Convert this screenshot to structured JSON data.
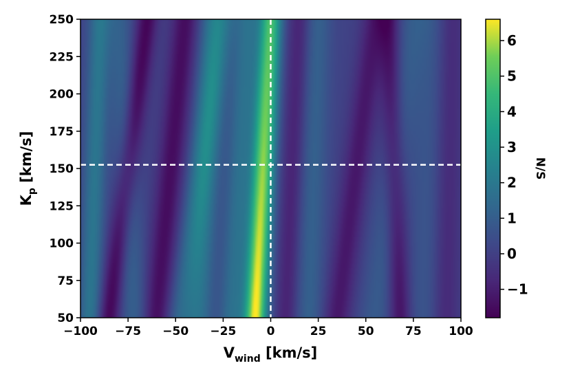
{
  "chart_data": {
    "type": "heatmap",
    "title": "",
    "xlabel": {
      "main": "V",
      "sub": "wind",
      "unit": " [km/s]"
    },
    "ylabel": {
      "main": "K",
      "sub": "p",
      "unit": " [km/s]"
    },
    "xlim": [
      -100,
      100
    ],
    "ylim": [
      50,
      250
    ],
    "x_ticks": [
      -100,
      -75,
      -50,
      -25,
      0,
      25,
      50,
      75,
      100
    ],
    "x_tick_labels": [
      "−100",
      "−75",
      "−50",
      "−25",
      "0",
      "25",
      "50",
      "75",
      "100"
    ],
    "y_ticks": [
      50,
      75,
      100,
      125,
      150,
      175,
      200,
      225,
      250
    ],
    "y_tick_labels": [
      "50",
      "75",
      "100",
      "125",
      "150",
      "175",
      "200",
      "225",
      "250"
    ],
    "colormap": "viridis",
    "colorbar": {
      "label": "N/S",
      "range": [
        -1.8,
        6.6
      ],
      "ticks": [
        -1,
        0,
        1,
        2,
        3,
        4,
        5,
        6
      ],
      "tick_labels": [
        "−1",
        "0",
        "1",
        "2",
        "3",
        "4",
        "5",
        "6"
      ]
    },
    "peak": {
      "v_wind": -3,
      "kp": 152,
      "value": 6.5
    },
    "crosshair": {
      "v_wind": 0,
      "kp": 152.5,
      "color": "#ffffff",
      "style": "dashed"
    },
    "ridges": [
      {
        "v_at_kp50": -8,
        "v_at_kp250": 0,
        "amplitude": 6.6,
        "width": 4
      },
      {
        "v_at_kp50": -85,
        "v_at_kp250": -65,
        "amplitude": -1.8,
        "width": 4
      },
      {
        "v_at_kp50": -60,
        "v_at_kp250": -45,
        "amplitude": -1.6,
        "width": 5
      },
      {
        "v_at_kp50": -38,
        "v_at_kp250": -30,
        "amplitude": 1.6,
        "width": 5
      },
      {
        "v_at_kp50": -48,
        "v_at_kp250": -25,
        "amplitude": 1.2,
        "width": 5
      },
      {
        "v_at_kp50": -20,
        "v_at_kp250": -12,
        "amplitude": 1.6,
        "width": 5
      },
      {
        "v_at_kp50": -95,
        "v_at_kp250": -90,
        "amplitude": 1.8,
        "width": 4
      },
      {
        "v_at_kp50": -72,
        "v_at_kp250": -80,
        "amplitude": 1.0,
        "width": 5
      },
      {
        "v_at_kp50": 8,
        "v_at_kp250": 15,
        "amplitude": -1.0,
        "width": 4
      },
      {
        "v_at_kp50": 20,
        "v_at_kp250": 25,
        "amplitude": 1.0,
        "width": 5
      },
      {
        "v_at_kp50": 35,
        "v_at_kp250": 55,
        "amplitude": -1.3,
        "width": 5
      },
      {
        "v_at_kp50": 55,
        "v_at_kp250": 75,
        "amplitude": 0.8,
        "width": 6
      },
      {
        "v_at_kp50": 68,
        "v_at_kp250": 62,
        "amplitude": -1.5,
        "width": 4
      },
      {
        "v_at_kp50": 80,
        "v_at_kp250": 85,
        "amplitude": 0.6,
        "width": 6
      },
      {
        "v_at_kp50": 92,
        "v_at_kp250": 95,
        "amplitude": -0.8,
        "width": 5
      }
    ]
  }
}
